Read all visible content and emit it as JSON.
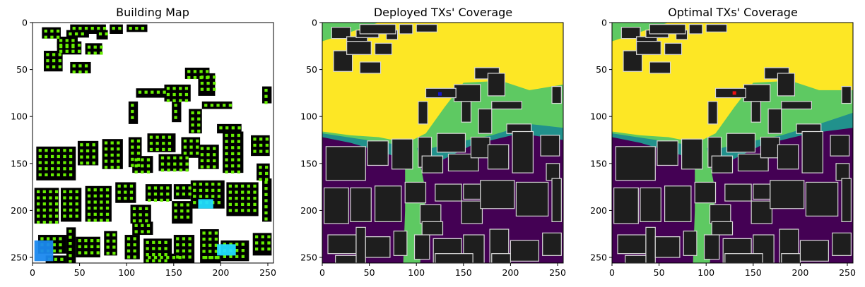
{
  "figure": {
    "colors": {
      "background": "#ffffff",
      "building_black": "#000000",
      "building_gray": "#1e1e1e",
      "building_edge": "#d8d8d8",
      "tx_green": "#66ee00",
      "tx_blue": "#1a88ee",
      "tx_cyan": "#22ddff",
      "viridis_low": "#440154",
      "viridis_mid1": "#21918c",
      "viridis_mid2": "#5ec962",
      "viridis_high": "#fde725",
      "deployed_tx_marker": "#1515cc",
      "optimal_tx_marker": "#ee1111"
    }
  },
  "chart_data": [
    {
      "type": "heatmap",
      "title": "Building Map",
      "xlim": [
        0,
        255
      ],
      "ylim": [
        255,
        0
      ],
      "x_ticks": [
        0,
        50,
        100,
        150,
        200,
        250
      ],
      "y_ticks": [
        0,
        50,
        100,
        150,
        200,
        250
      ],
      "x_tick_labels": [
        "0",
        "50",
        "100",
        "150",
        "200",
        "250"
      ],
      "y_tick_labels": [
        "0",
        "50",
        "100",
        "150",
        "200",
        "250"
      ]
    },
    {
      "type": "heatmap",
      "title": "Deployed TXs' Coverage",
      "colormap": "viridis",
      "tx_marker": [
        125,
        76
      ],
      "xlim": [
        0,
        255
      ],
      "ylim": [
        255,
        0
      ],
      "x_ticks": [
        0,
        50,
        100,
        150,
        200,
        250
      ],
      "y_ticks": [
        0,
        50,
        100,
        150,
        200,
        250
      ],
      "x_tick_labels": [
        "0",
        "50",
        "100",
        "150",
        "200",
        "250"
      ],
      "y_tick_labels": [
        "0",
        "50",
        "100",
        "150",
        "200",
        "250"
      ]
    },
    {
      "type": "heatmap",
      "title": "Optimal TXs' Coverage",
      "colormap": "viridis",
      "tx_marker": [
        130,
        75
      ],
      "xlim": [
        0,
        255
      ],
      "ylim": [
        255,
        0
      ],
      "x_ticks": [
        0,
        50,
        100,
        150,
        200,
        250
      ],
      "y_ticks": [
        0,
        50,
        100,
        150,
        200,
        250
      ],
      "x_tick_labels": [
        "0",
        "50",
        "100",
        "150",
        "200",
        "250"
      ],
      "y_tick_labels": [
        "0",
        "50",
        "100",
        "150",
        "200",
        "250"
      ]
    }
  ]
}
